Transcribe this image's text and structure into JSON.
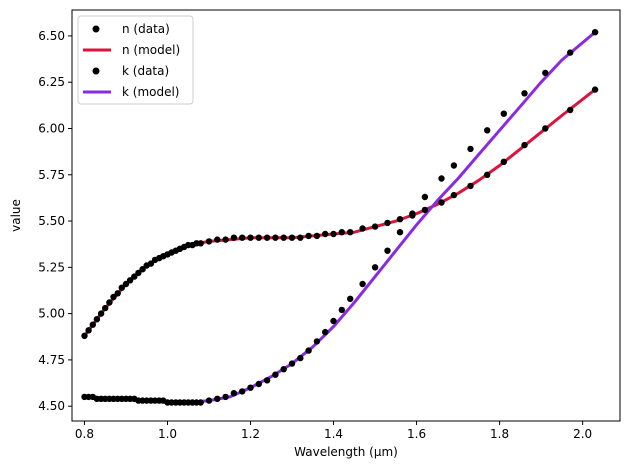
{
  "chart_data": {
    "type": "line",
    "title": "",
    "xlabel": "Wavelength (μm)",
    "ylabel": "value",
    "xlim": [
      0.77,
      2.09
    ],
    "ylim": [
      4.42,
      6.64
    ],
    "xticks": [
      0.8,
      1.0,
      1.2,
      1.4,
      1.6,
      1.8,
      2.0
    ],
    "xtick_labels": [
      "0.8",
      "1.0",
      "1.2",
      "1.4",
      "1.6",
      "1.8",
      "2.0"
    ],
    "yticks": [
      4.5,
      4.75,
      5.0,
      5.25,
      5.5,
      5.75,
      6.0,
      6.25,
      6.5
    ],
    "ytick_labels": [
      "4.50",
      "4.75",
      "5.00",
      "5.25",
      "5.50",
      "5.75",
      "6.00",
      "6.25",
      "6.50"
    ],
    "grid": false,
    "legend_position": "top-left",
    "colors": {
      "data_points": "#000000",
      "n_model": "#dc143c",
      "k_model": "#8a2be2"
    },
    "legend": [
      {
        "label": "n (data)",
        "kind": "scatter",
        "color": "#000000"
      },
      {
        "label": "n (model)",
        "kind": "line",
        "color": "#dc143c"
      },
      {
        "label": "k (data)",
        "kind": "scatter",
        "color": "#000000"
      },
      {
        "label": "k (model)",
        "kind": "line",
        "color": "#8a2be2"
      }
    ],
    "series": [
      {
        "name": "n (data)",
        "kind": "scatter",
        "x": [
          0.8,
          0.81,
          0.82,
          0.83,
          0.84,
          0.85,
          0.86,
          0.87,
          0.88,
          0.89,
          0.9,
          0.91,
          0.92,
          0.93,
          0.94,
          0.95,
          0.96,
          0.97,
          0.98,
          0.99,
          1.0,
          1.01,
          1.02,
          1.03,
          1.04,
          1.05,
          1.06,
          1.07,
          1.08,
          1.1,
          1.12,
          1.14,
          1.16,
          1.18,
          1.2,
          1.22,
          1.24,
          1.26,
          1.28,
          1.3,
          1.32,
          1.34,
          1.36,
          1.38,
          1.4,
          1.42,
          1.44,
          1.47,
          1.5,
          1.53,
          1.56,
          1.59,
          1.62,
          1.66,
          1.69,
          1.73,
          1.77,
          1.81,
          1.86,
          1.91,
          1.97,
          2.03
        ],
        "y": [
          4.88,
          4.91,
          4.94,
          4.97,
          5.0,
          5.03,
          5.06,
          5.09,
          5.11,
          5.14,
          5.16,
          5.18,
          5.2,
          5.22,
          5.24,
          5.26,
          5.27,
          5.29,
          5.3,
          5.31,
          5.32,
          5.33,
          5.34,
          5.35,
          5.36,
          5.37,
          5.37,
          5.38,
          5.38,
          5.39,
          5.4,
          5.4,
          5.41,
          5.41,
          5.41,
          5.41,
          5.41,
          5.41,
          5.41,
          5.41,
          5.41,
          5.42,
          5.42,
          5.43,
          5.43,
          5.44,
          5.44,
          5.46,
          5.47,
          5.49,
          5.51,
          5.53,
          5.56,
          5.6,
          5.64,
          5.69,
          5.75,
          5.82,
          5.91,
          6.0,
          6.1,
          6.21
        ]
      },
      {
        "name": "n (model)",
        "kind": "line",
        "x": [
          0.8,
          0.85,
          0.9,
          0.95,
          1.0,
          1.05,
          1.1,
          1.15,
          1.2,
          1.25,
          1.3,
          1.35,
          1.4,
          1.45,
          1.5,
          1.55,
          1.6,
          1.65,
          1.7,
          1.75,
          1.8,
          1.85,
          1.9,
          1.95,
          2.03
        ],
        "y": [
          4.88,
          5.03,
          5.16,
          5.26,
          5.32,
          5.37,
          5.39,
          5.4,
          5.41,
          5.41,
          5.41,
          5.42,
          5.43,
          5.44,
          5.47,
          5.5,
          5.54,
          5.59,
          5.65,
          5.72,
          5.8,
          5.89,
          5.98,
          6.07,
          6.21
        ]
      },
      {
        "name": "k (data)",
        "kind": "scatter",
        "x": [
          0.8,
          0.81,
          0.82,
          0.83,
          0.84,
          0.85,
          0.86,
          0.87,
          0.88,
          0.89,
          0.9,
          0.91,
          0.92,
          0.93,
          0.94,
          0.95,
          0.96,
          0.97,
          0.98,
          0.99,
          1.0,
          1.01,
          1.02,
          1.03,
          1.04,
          1.05,
          1.06,
          1.07,
          1.08,
          1.1,
          1.12,
          1.14,
          1.16,
          1.18,
          1.2,
          1.22,
          1.24,
          1.26,
          1.28,
          1.3,
          1.32,
          1.34,
          1.36,
          1.38,
          1.4,
          1.42,
          1.44,
          1.47,
          1.5,
          1.53,
          1.56,
          1.59,
          1.62,
          1.66,
          1.69,
          1.73,
          1.77,
          1.81,
          1.86,
          1.91,
          1.97,
          2.03
        ],
        "y": [
          4.55,
          4.55,
          4.55,
          4.54,
          4.54,
          4.54,
          4.54,
          4.54,
          4.54,
          4.54,
          4.54,
          4.54,
          4.54,
          4.53,
          4.53,
          4.53,
          4.53,
          4.53,
          4.53,
          4.53,
          4.52,
          4.52,
          4.52,
          4.52,
          4.52,
          4.52,
          4.52,
          4.52,
          4.52,
          4.53,
          4.54,
          4.55,
          4.57,
          4.58,
          4.6,
          4.62,
          4.64,
          4.67,
          4.7,
          4.73,
          4.76,
          4.8,
          4.85,
          4.9,
          4.96,
          5.02,
          5.08,
          5.16,
          5.25,
          5.34,
          5.44,
          5.54,
          5.63,
          5.73,
          5.8,
          5.89,
          5.99,
          6.08,
          6.19,
          6.3,
          6.41,
          6.52
        ]
      },
      {
        "name": "k (model)",
        "kind": "line",
        "x": [
          0.8,
          0.85,
          0.9,
          0.95,
          1.0,
          1.05,
          1.1,
          1.15,
          1.2,
          1.25,
          1.3,
          1.35,
          1.4,
          1.45,
          1.5,
          1.55,
          1.6,
          1.65,
          1.7,
          1.75,
          1.8,
          1.85,
          1.9,
          1.95,
          2.03
        ],
        "y": [
          4.55,
          4.54,
          4.54,
          4.53,
          4.52,
          4.52,
          4.53,
          4.55,
          4.6,
          4.66,
          4.73,
          4.82,
          4.93,
          5.06,
          5.2,
          5.34,
          5.48,
          5.61,
          5.73,
          5.86,
          5.99,
          6.12,
          6.25,
          6.37,
          6.52
        ]
      }
    ]
  }
}
